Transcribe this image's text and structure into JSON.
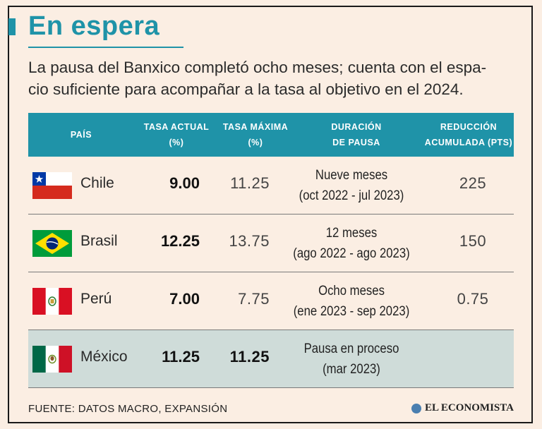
{
  "title": "En espera",
  "subtitle_lines": [
    "La pausa del Banxico completó ocho meses; cuenta con el espa-",
    "cio suficiente para acompañar a la tasa al objetivo en el 2024."
  ],
  "table": {
    "headers": {
      "pais": [
        "PAÍS"
      ],
      "tasa_actual": [
        "TASA ACTUAL",
        "(%)"
      ],
      "tasa_maxima": [
        "TASA MÁXIMA",
        "(%)"
      ],
      "duracion": [
        "DURACIÓN",
        "DE PAUSA"
      ],
      "reduccion": [
        "REDUCCIÓN",
        "ACUMULADA (PTS)"
      ]
    },
    "rows": [
      {
        "country": "Chile",
        "flag": "chile-flag-icon",
        "tasa_actual": "9.00",
        "tasa_maxima": "11.25",
        "duracion": [
          "Nueve meses",
          "(oct 2022 - jul 2023)"
        ],
        "reduccion": "225"
      },
      {
        "country": "Brasil",
        "flag": "brazil-flag-icon",
        "tasa_actual": "12.25",
        "tasa_maxima": "13.75",
        "duracion": [
          "12 meses",
          "(ago 2022 - ago 2023)"
        ],
        "reduccion": "150"
      },
      {
        "country": "Perú",
        "flag": "peru-flag-icon",
        "tasa_actual": "7.00",
        "tasa_maxima": "7.75",
        "duracion": [
          "Ocho meses",
          "(ene 2023 - sep 2023)"
        ],
        "reduccion": "0.75"
      },
      {
        "country": "México",
        "flag": "mexico-flag-icon",
        "tasa_actual": "11.25",
        "tasa_maxima": "11.25",
        "duracion": [
          "Pausa en proceso",
          "(mar 2023)"
        ],
        "reduccion": ""
      }
    ]
  },
  "footer": {
    "source": "FUENTE: DATOS MACRO, EXPANSIÓN",
    "brand": "EL ECONOMISTA"
  },
  "colors": {
    "accent": "#1f93a8",
    "background": "#fbeee3",
    "highlight_row": "#cfdcd9"
  }
}
